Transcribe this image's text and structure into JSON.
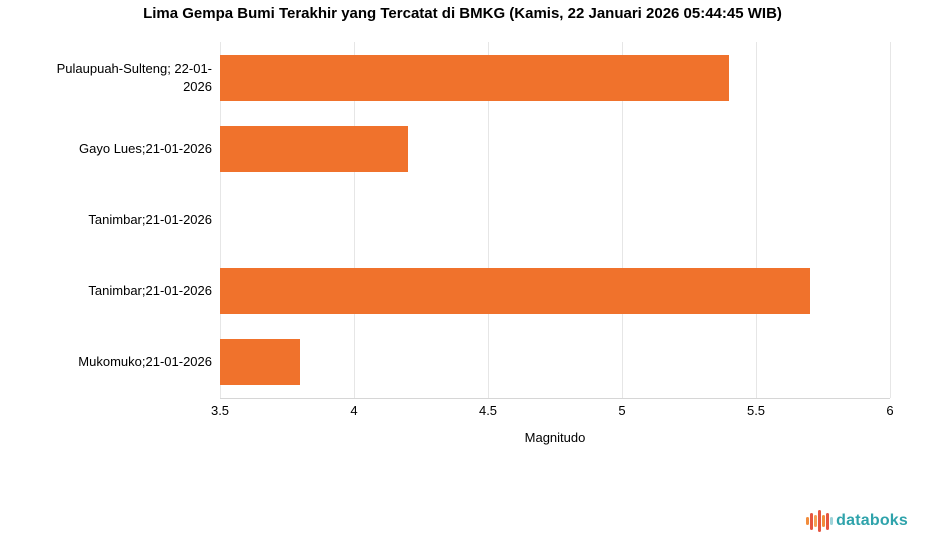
{
  "chart_data": {
    "type": "bar",
    "orientation": "horizontal",
    "title": "Lima Gempa Bumi Terakhir yang Tercatat di BMKG (Kamis, 22 Januari 2026 05:44:45 WIB)",
    "categories": [
      "Pulaupuah-Sulteng; 22-01-2026",
      "Gayo Lues;21-01-2026",
      "Tanimbar;21-01-2026",
      "Tanimbar;21-01-2026",
      "Mukomuko;21-01-2026"
    ],
    "values": [
      5.4,
      4.2,
      3.5,
      5.7,
      3.8
    ],
    "xlabel": "Magnitudo",
    "xlim": [
      3.5,
      6
    ],
    "xtick_values": [
      3.5,
      4,
      4.5,
      5,
      5.5,
      6
    ],
    "xtick_labels": [
      "3.5",
      "4",
      "4.5",
      "5",
      "5.5",
      "6"
    ],
    "grid": true,
    "legend": false,
    "bar_color": "#f0722c",
    "gridline_color": "#e6e6e6"
  },
  "logo": {
    "text": "databoks",
    "text_color": "#2fa3ab",
    "icon": "equalizer-bars-icon",
    "icon_bar_colors": [
      "#f28c3c",
      "#e65540",
      "#f4a055",
      "#e65540",
      "#f28c3c",
      "#e65540",
      "#9fd3d9"
    ],
    "icon_bar_heights": [
      8,
      17,
      12,
      22,
      12,
      17,
      8
    ]
  }
}
